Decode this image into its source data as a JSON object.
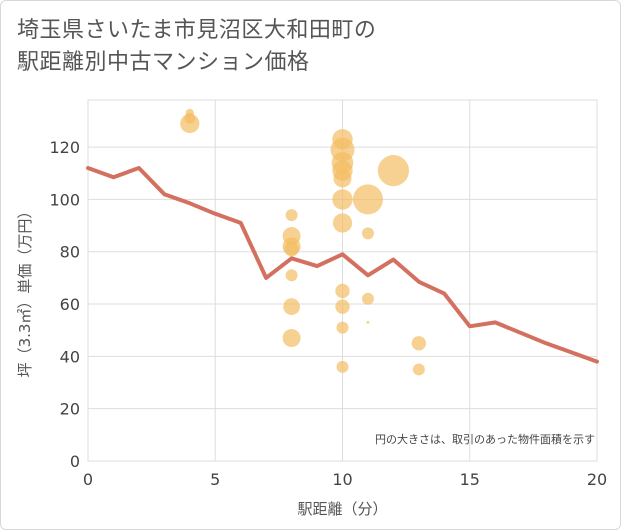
{
  "chart_data": {
    "type": "scatter",
    "title_line1": "埼玉県さいたま市見沼区大和田町の",
    "title_line2": "駅距離別中古マンション価格",
    "xlabel": "駅距離（分）",
    "ylabel": "坪（3.3㎡）単価（万円）",
    "note": "円の大きさは、取引のあった物件面積を示す",
    "xlim": [
      0,
      20
    ],
    "ylim": [
      0,
      138
    ],
    "x_ticks": [
      0,
      5,
      10,
      15,
      20
    ],
    "y_ticks": [
      0,
      20,
      40,
      60,
      80,
      100,
      120
    ],
    "grid": true,
    "colors": {
      "bubble": "#f3be63",
      "bubble_opacity": 0.7,
      "line": "#d4705f",
      "grid": "#dddddd",
      "plot_bg": "#eaeaee"
    },
    "bubbles": [
      {
        "x": 4,
        "y": 133,
        "size": 0.35
      },
      {
        "x": 4,
        "y": 131,
        "size": 0.45
      },
      {
        "x": 4,
        "y": 129,
        "size": 0.8
      },
      {
        "x": 8,
        "y": 94,
        "size": 0.5
      },
      {
        "x": 8,
        "y": 86,
        "size": 0.75
      },
      {
        "x": 8,
        "y": 82,
        "size": 0.75
      },
      {
        "x": 8,
        "y": 81,
        "size": 0.6
      },
      {
        "x": 8,
        "y": 71,
        "size": 0.5
      },
      {
        "x": 8,
        "y": 59,
        "size": 0.7
      },
      {
        "x": 8,
        "y": 47,
        "size": 0.75
      },
      {
        "x": 10,
        "y": 123,
        "size": 0.85
      },
      {
        "x": 10,
        "y": 119,
        "size": 1.0
      },
      {
        "x": 10,
        "y": 114,
        "size": 0.9
      },
      {
        "x": 10,
        "y": 111,
        "size": 0.85
      },
      {
        "x": 10,
        "y": 108,
        "size": 0.75
      },
      {
        "x": 10,
        "y": 100,
        "size": 0.85
      },
      {
        "x": 10,
        "y": 91,
        "size": 0.8
      },
      {
        "x": 10,
        "y": 65,
        "size": 0.6
      },
      {
        "x": 10,
        "y": 59,
        "size": 0.6
      },
      {
        "x": 10,
        "y": 51,
        "size": 0.5
      },
      {
        "x": 10,
        "y": 36,
        "size": 0.5
      },
      {
        "x": 11,
        "y": 100,
        "size": 1.25
      },
      {
        "x": 11,
        "y": 87,
        "size": 0.5
      },
      {
        "x": 11,
        "y": 62,
        "size": 0.5
      },
      {
        "x": 11,
        "y": 53,
        "size": 0.12
      },
      {
        "x": 12,
        "y": 111,
        "size": 1.3
      },
      {
        "x": 13,
        "y": 45,
        "size": 0.6
      },
      {
        "x": 13,
        "y": 35,
        "size": 0.5
      }
    ],
    "line": {
      "x": [
        0,
        1,
        2,
        3,
        4,
        5,
        6,
        7,
        8,
        9,
        10,
        11,
        12,
        13,
        14,
        15,
        16,
        17,
        18,
        19,
        20
      ],
      "y": [
        112,
        108.5,
        112,
        102,
        98.5,
        94.5,
        91,
        70,
        77.5,
        74.5,
        79,
        71,
        77,
        68.5,
        64,
        51.5,
        53,
        49,
        45,
        41.5,
        38
      ]
    }
  }
}
